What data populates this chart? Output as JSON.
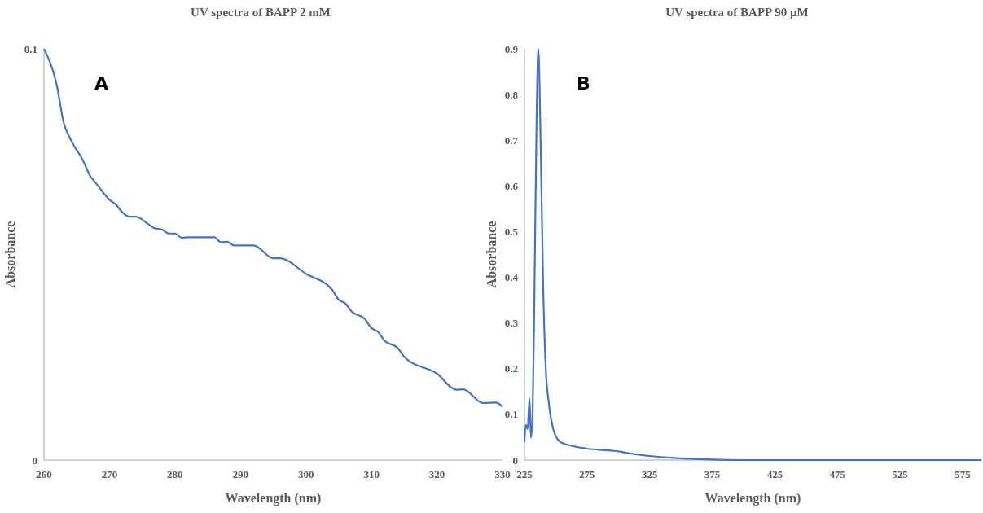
{
  "chart_data": [
    {
      "type": "line",
      "title": "UV spectra of BAPP 2 mM",
      "xlabel": "Wavelength (nm)",
      "ylabel": "Absorbance",
      "annotations": [
        "A"
      ],
      "x": [
        260,
        262,
        263,
        264,
        266,
        267,
        268,
        270,
        271,
        272,
        273,
        274,
        276,
        277,
        278,
        279,
        280,
        281,
        282,
        286,
        287,
        288,
        289,
        291,
        292,
        295,
        296,
        300,
        304,
        305,
        306,
        307,
        309,
        310,
        311,
        312,
        314,
        315,
        320,
        323,
        324,
        327,
        329,
        330
      ],
      "series": [
        {
          "color": "#4472c4",
          "values": [
            0.1,
            0.0908,
            0.0821,
            0.0782,
            0.0727,
            0.0692,
            0.0672,
            0.0633,
            0.0621,
            0.0602,
            0.0592,
            0.0592,
            0.0573,
            0.0563,
            0.0561,
            0.0551,
            0.0551,
            0.0541,
            0.0542,
            0.0542,
            0.053,
            0.0531,
            0.0522,
            0.0522,
            0.0522,
            0.0491,
            0.0491,
            0.0453,
            0.0414,
            0.039,
            0.0381,
            0.0361,
            0.0343,
            0.0321,
            0.0312,
            0.029,
            0.0273,
            0.0251,
            0.021,
            0.0171,
            0.0172,
            0.0139,
            0.014,
            0.013
          ]
        }
      ],
      "xlim": [
        260,
        330
      ],
      "xticks": [
        260,
        270,
        280,
        290,
        300,
        310,
        320,
        330
      ],
      "ylim": [
        0,
        0.1
      ],
      "yticks": [
        0,
        0.1
      ]
    },
    {
      "type": "line",
      "title": "UV spectra of BAPP 90 µM",
      "xlabel": "Wavelength (nm)",
      "ylabel": "Absorbance",
      "annotations": [
        "B"
      ],
      "x": [
        225,
        226,
        227.5,
        229,
        230.2,
        231.5,
        233,
        234.7,
        236,
        237,
        238.3,
        239.9,
        242,
        244.4,
        247.7,
        253.4,
        260,
        274.8,
        297,
        315,
        342,
        375,
        400,
        450,
        500,
        550,
        590
      ],
      "series": [
        {
          "color": "#4472c4",
          "values": [
            0.04,
            0.077,
            0.068,
            0.135,
            0.049,
            0.1,
            0.38,
            0.75,
            0.9,
            0.826,
            0.63,
            0.384,
            0.2,
            0.126,
            0.071,
            0.04,
            0.033,
            0.025,
            0.02,
            0.012,
            0.005,
            0.001,
            0,
            0,
            0,
            0,
            0
          ]
        }
      ],
      "xlim": [
        225,
        590
      ],
      "xticks": [
        225,
        275,
        325,
        375,
        425,
        475,
        525,
        575
      ],
      "ylim": [
        0,
        0.9
      ],
      "yticks": [
        0,
        0.1,
        0.2,
        0.3,
        0.4,
        0.5,
        0.6,
        0.7,
        0.8,
        0.9
      ]
    }
  ]
}
